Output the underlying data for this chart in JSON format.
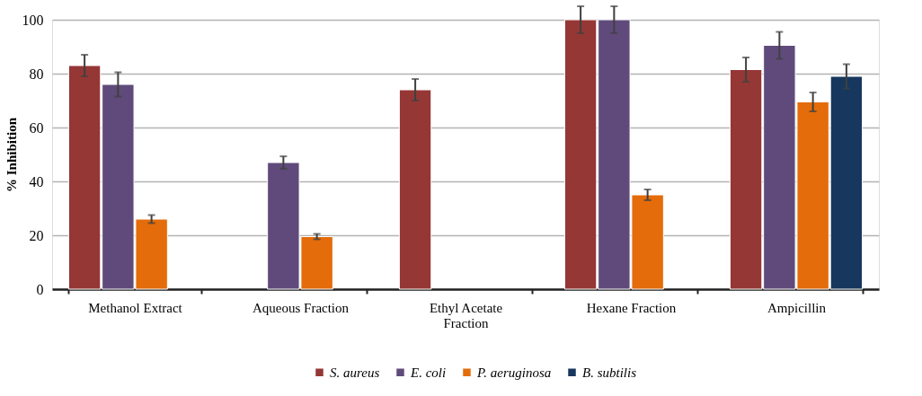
{
  "chart_data": {
    "type": "bar",
    "ylabel": "% Inhibition",
    "categories": [
      "Methanol Extract",
      "Aqueous Fraction",
      "Ethyl Acetate Fraction",
      "Hexane Fraction",
      "Ampicillin"
    ],
    "series": [
      {
        "name": "S. aureus",
        "color": "#953735",
        "values": [
          83,
          null,
          74,
          100,
          81.5
        ],
        "errors": [
          4,
          null,
          4,
          5,
          4.5
        ]
      },
      {
        "name": "E. coli",
        "color": "#604a7b",
        "values": [
          76,
          47,
          null,
          100,
          90.5
        ],
        "errors": [
          4.5,
          2.3,
          null,
          5,
          5
        ]
      },
      {
        "name": "P. aeruginosa",
        "color": "#e46c0a",
        "values": [
          26,
          19.5,
          null,
          35,
          69.5
        ],
        "errors": [
          1.5,
          1,
          null,
          2,
          3.5
        ]
      },
      {
        "name": "B. subtilis",
        "color": "#17375e",
        "values": [
          null,
          null,
          null,
          null,
          79
        ],
        "errors": [
          null,
          null,
          null,
          null,
          4.5
        ]
      }
    ],
    "ylim": [
      0,
      100
    ],
    "yticks": [
      0,
      20,
      40,
      60,
      80,
      100
    ],
    "grid": "y",
    "legend": "bottom"
  }
}
